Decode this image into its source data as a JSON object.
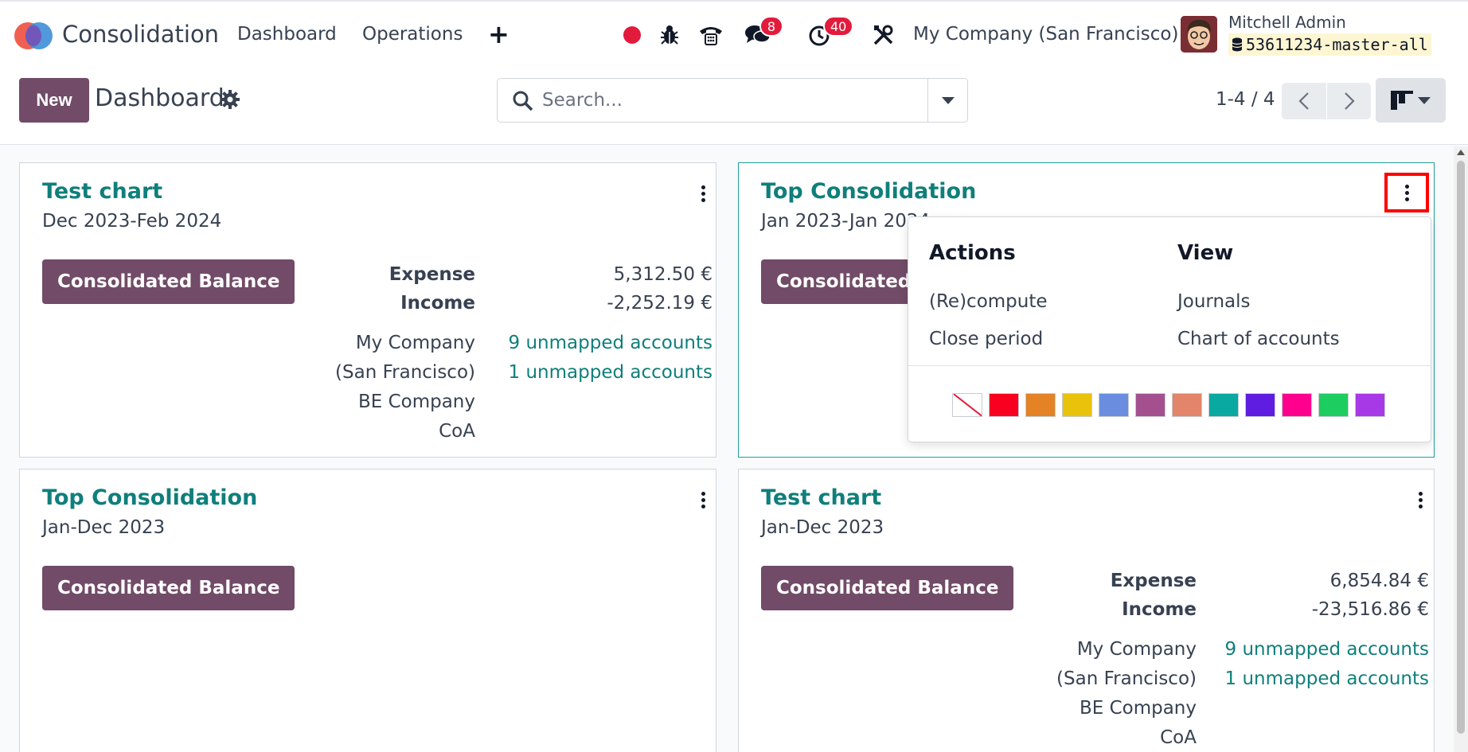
{
  "app": {
    "name": "Consolidation",
    "logo_icon": "consolidation-app-icon"
  },
  "navbar": {
    "menu": [
      {
        "label": "Dashboard"
      },
      {
        "label": "Operations"
      }
    ],
    "plus_label": "+",
    "chat_badge": "8",
    "activity_badge": "40",
    "company": "My Company (San Francisco)",
    "user_name": "Mitchell Admin",
    "database": "53611234-master-all",
    "colors": {
      "record": "#e21b3c",
      "badge": "#e21b3c"
    }
  },
  "control_panel": {
    "new_label": "New",
    "title": "Dashboard",
    "search_placeholder": "Search...",
    "pager": "1-4 / 4"
  },
  "cards": [
    {
      "title": "Test chart",
      "period": "Dec 2023-Feb 2024",
      "button": "Consolidated Balance",
      "stats": [
        {
          "label": "Expense",
          "value": "5,312.50 €"
        },
        {
          "label": "Income",
          "value": "-2,252.19 €"
        }
      ],
      "companies": [
        {
          "line1": "My Company",
          "line2": "(San Francisco)",
          "link": "9 unmapped accounts"
        },
        {
          "line1": "BE Company",
          "line2": "CoA",
          "link": "1 unmapped accounts"
        }
      ]
    },
    {
      "title": "Top Consolidation",
      "period": "Jan 2023-Jan 2024",
      "button": "Consolidated Balance"
    },
    {
      "title": "Top Consolidation",
      "period": "Jan-Dec 2023",
      "button": "Consolidated Balance"
    },
    {
      "title": "Test chart",
      "period": "Jan-Dec 2023",
      "button": "Consolidated Balance",
      "stats": [
        {
          "label": "Expense",
          "value": "6,854.84 €"
        },
        {
          "label": "Income",
          "value": "-23,516.86 €"
        }
      ],
      "companies": [
        {
          "line1": "My Company",
          "line2": "(San Francisco)",
          "link": "9 unmapped accounts"
        },
        {
          "line1": "BE Company",
          "line2": "CoA",
          "link": "1 unmapped accounts"
        }
      ]
    }
  ],
  "dropdown": {
    "actions_title": "Actions",
    "actions": [
      "(Re)compute",
      "Close period"
    ],
    "view_title": "View",
    "view": [
      "Journals",
      "Chart of accounts"
    ],
    "colors": [
      "none",
      "#f8001f",
      "#e48226",
      "#e9c20c",
      "#6a8de0",
      "#a4508f",
      "#e2856a",
      "#09a8a0",
      "#5e1de1",
      "#ff008e",
      "#1dcd5f",
      "#a839e6"
    ]
  },
  "theme": {
    "primary": "#714b67",
    "link": "#0f7f7b",
    "highlight_outline": "#ff0000"
  }
}
